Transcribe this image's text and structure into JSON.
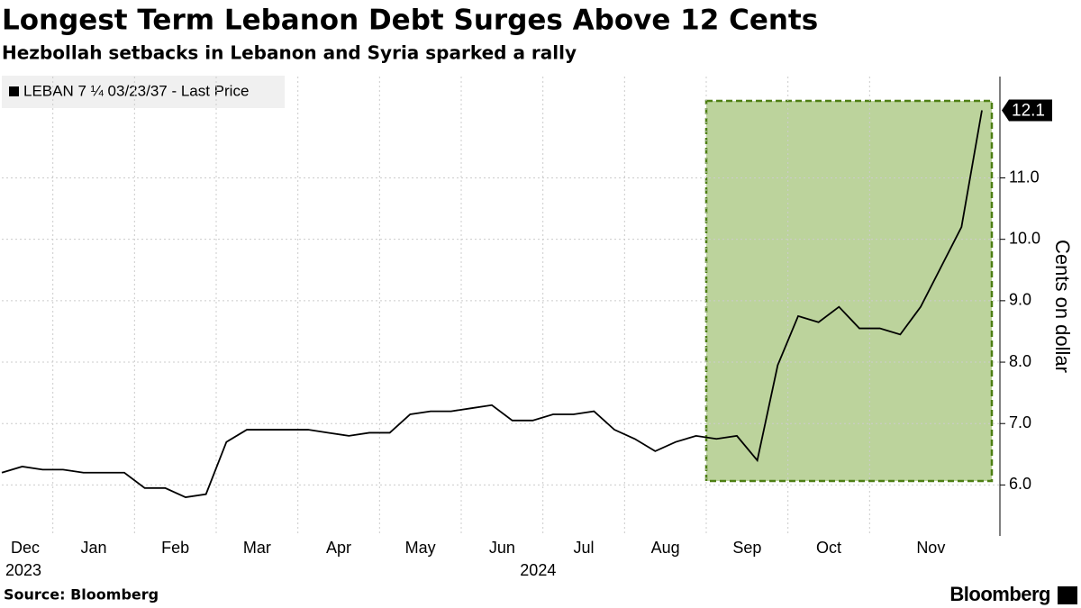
{
  "chart_data": {
    "type": "line",
    "title": "Longest Term Lebanon Debt Surges Above 12 Cents",
    "subtitle": "Hezbollah setbacks in Lebanon and Syria sparked a rally",
    "y_label": "Cents on dollar",
    "source": "Source: Bloomberg",
    "brand": "Bloomberg",
    "categories": [
      "Dec",
      null,
      null,
      "Jan",
      null,
      null,
      null,
      "Feb",
      null,
      null,
      null,
      "Mar",
      null,
      null,
      null,
      "Apr",
      null,
      null,
      null,
      "May",
      null,
      null,
      null,
      "Jun",
      null,
      null,
      null,
      "Jul",
      null,
      null,
      null,
      "Aug",
      null,
      null,
      null,
      "Sep",
      null,
      null,
      null,
      "Oct",
      null,
      null,
      null,
      "Nov",
      null,
      null,
      null,
      null,
      null
    ],
    "category_years": [
      "2023",
      null,
      null,
      null,
      null,
      null,
      null,
      null,
      null,
      null,
      null,
      null,
      null,
      null,
      null,
      null,
      null,
      null,
      null,
      null,
      null,
      null,
      null,
      "2024",
      null,
      null,
      null,
      null,
      null,
      null,
      null,
      null,
      null,
      null,
      null,
      null,
      null,
      null,
      null,
      null,
      null,
      null,
      null,
      null,
      null,
      null,
      null,
      null,
      null
    ],
    "series": [
      {
        "name": "LEBAN 7 ¼ 03/23/37 - Last Price",
        "color": "#000000",
        "values": [
          6.2,
          6.3,
          6.25,
          6.25,
          6.2,
          6.2,
          6.2,
          5.95,
          5.95,
          5.8,
          5.85,
          6.7,
          6.9,
          6.9,
          6.9,
          6.9,
          6.85,
          6.8,
          6.85,
          6.85,
          7.15,
          7.2,
          7.2,
          7.25,
          7.3,
          7.05,
          7.05,
          7.15,
          7.15,
          7.2,
          6.9,
          6.75,
          6.55,
          6.7,
          6.8,
          6.75,
          6.8,
          6.4,
          7.95,
          8.75,
          8.65,
          8.9,
          8.55,
          8.55,
          8.45,
          8.9,
          9.55,
          10.2,
          12.1
        ]
      }
    ],
    "ylim": [
      5.17,
      12.65
    ],
    "yticks": [
      {
        "value": 6,
        "label": "6.0"
      },
      {
        "value": 7,
        "label": "7.0"
      },
      {
        "value": 8,
        "label": "8.0"
      },
      {
        "value": 9,
        "label": "9.0"
      },
      {
        "value": 10,
        "label": "10.0"
      },
      {
        "value": 11,
        "label": "11.0"
      }
    ],
    "grid": true,
    "highlight_color": "#bcd39c"
  }
}
